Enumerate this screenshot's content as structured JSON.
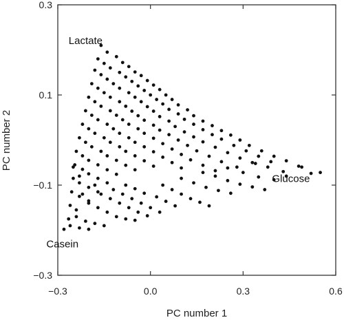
{
  "chart_data": {
    "type": "scatter",
    "title": "",
    "xlabel": "PC number 1",
    "ylabel": "PC number 2",
    "xlim": [
      -0.3,
      0.6
    ],
    "ylim": [
      -0.3,
      0.3
    ],
    "xticks": [
      -0.3,
      0.0,
      0.3,
      0.6
    ],
    "xtick_labels": [
      "−0.3",
      "0.0",
      "0.3",
      "0.6"
    ],
    "yticks": [
      -0.3,
      -0.1,
      0.1,
      0.3
    ],
    "ytick_labels": [
      "−0.3",
      "−0.1",
      "0.1",
      "0.3"
    ],
    "grid": false,
    "annotations": [
      {
        "text": "Lactate",
        "x": -0.21,
        "y": 0.213
      },
      {
        "text": "Glucose",
        "x": 0.455,
        "y": -0.093
      },
      {
        "text": "Casein",
        "x": -0.285,
        "y": -0.238
      }
    ],
    "point_color": "#111111",
    "series": [
      {
        "points": [
          [
            -0.16,
            0.21
          ],
          [
            -0.14,
            0.195
          ],
          [
            -0.11,
            0.185
          ],
          [
            -0.09,
            0.172
          ],
          [
            -0.07,
            0.163
          ],
          [
            -0.05,
            0.151
          ],
          [
            -0.03,
            0.143
          ],
          [
            -0.01,
            0.132
          ],
          [
            0.01,
            0.122
          ],
          [
            0.03,
            0.112
          ],
          [
            0.05,
            0.1
          ],
          [
            0.07,
            0.09
          ],
          [
            0.09,
            0.078
          ],
          [
            0.12,
            0.067
          ],
          [
            0.14,
            0.054
          ],
          [
            0.17,
            0.042
          ],
          [
            0.2,
            0.032
          ],
          [
            0.23,
            0.021
          ],
          [
            0.26,
            0.011
          ],
          [
            0.29,
            0.0
          ],
          [
            0.32,
            -0.012
          ],
          [
            0.36,
            -0.024
          ],
          [
            0.4,
            -0.036
          ],
          [
            0.44,
            -0.046
          ],
          [
            0.48,
            -0.058
          ],
          [
            0.55,
            -0.072
          ],
          [
            -0.17,
            0.18
          ],
          [
            -0.15,
            0.17
          ],
          [
            -0.13,
            0.16
          ],
          [
            -0.1,
            0.15
          ],
          [
            -0.08,
            0.14
          ],
          [
            -0.06,
            0.13
          ],
          [
            -0.04,
            0.12
          ],
          [
            -0.02,
            0.11
          ],
          [
            0.0,
            0.1
          ],
          [
            0.02,
            0.09
          ],
          [
            0.04,
            0.08
          ],
          [
            0.06,
            0.068
          ],
          [
            0.09,
            0.058
          ],
          [
            0.11,
            0.046
          ],
          [
            0.14,
            0.035
          ],
          [
            0.17,
            0.023
          ],
          [
            0.2,
            0.012
          ],
          [
            0.23,
            0.002
          ],
          [
            0.27,
            -0.012
          ],
          [
            0.31,
            -0.024
          ],
          [
            0.35,
            -0.036
          ],
          [
            0.39,
            -0.048
          ],
          [
            -0.18,
            0.155
          ],
          [
            -0.16,
            0.145
          ],
          [
            -0.14,
            0.135
          ],
          [
            -0.12,
            0.125
          ],
          [
            -0.1,
            0.115
          ],
          [
            -0.07,
            0.105
          ],
          [
            -0.05,
            0.095
          ],
          [
            -0.03,
            0.085
          ],
          [
            -0.01,
            0.074
          ],
          [
            0.01,
            0.064
          ],
          [
            0.03,
            0.052
          ],
          [
            0.06,
            0.042
          ],
          [
            0.08,
            0.03
          ],
          [
            0.11,
            0.018
          ],
          [
            0.14,
            0.007
          ],
          [
            0.17,
            -0.004
          ],
          [
            0.21,
            -0.016
          ],
          [
            0.25,
            -0.028
          ],
          [
            0.29,
            -0.04
          ],
          [
            0.34,
            -0.052
          ],
          [
            -0.19,
            0.125
          ],
          [
            -0.17,
            0.115
          ],
          [
            -0.15,
            0.105
          ],
          [
            -0.13,
            0.095
          ],
          [
            -0.1,
            0.085
          ],
          [
            -0.08,
            0.075
          ],
          [
            -0.06,
            0.064
          ],
          [
            -0.04,
            0.054
          ],
          [
            -0.02,
            0.044
          ],
          [
            0.01,
            0.033
          ],
          [
            0.03,
            0.022
          ],
          [
            0.06,
            0.012
          ],
          [
            0.09,
            0.0
          ],
          [
            0.12,
            -0.012
          ],
          [
            0.15,
            -0.024
          ],
          [
            0.19,
            -0.036
          ],
          [
            0.23,
            -0.048
          ],
          [
            0.28,
            -0.06
          ],
          [
            -0.2,
            0.095
          ],
          [
            -0.18,
            0.085
          ],
          [
            -0.16,
            0.075
          ],
          [
            -0.13,
            0.065
          ],
          [
            -0.11,
            0.055
          ],
          [
            -0.09,
            0.045
          ],
          [
            -0.07,
            0.035
          ],
          [
            -0.04,
            0.025
          ],
          [
            -0.02,
            0.015
          ],
          [
            0.01,
            0.004
          ],
          [
            0.04,
            -0.008
          ],
          [
            0.07,
            -0.02
          ],
          [
            0.1,
            -0.032
          ],
          [
            0.13,
            -0.044
          ],
          [
            0.17,
            -0.056
          ],
          [
            0.21,
            -0.068
          ],
          [
            -0.21,
            0.065
          ],
          [
            -0.19,
            0.055
          ],
          [
            -0.17,
            0.045
          ],
          [
            -0.14,
            0.035
          ],
          [
            -0.12,
            0.025
          ],
          [
            -0.1,
            0.015
          ],
          [
            -0.07,
            0.005
          ],
          [
            -0.05,
            -0.005
          ],
          [
            -0.02,
            -0.015
          ],
          [
            0.01,
            -0.026
          ],
          [
            0.04,
            -0.038
          ],
          [
            0.07,
            -0.05
          ],
          [
            0.1,
            -0.062
          ],
          [
            -0.22,
            0.035
          ],
          [
            -0.2,
            0.025
          ],
          [
            -0.18,
            0.015
          ],
          [
            -0.15,
            0.005
          ],
          [
            -0.13,
            -0.005
          ],
          [
            -0.1,
            -0.015
          ],
          [
            -0.08,
            -0.025
          ],
          [
            -0.05,
            -0.035
          ],
          [
            -0.02,
            -0.046
          ],
          [
            0.01,
            -0.058
          ],
          [
            -0.23,
            0.005
          ],
          [
            -0.21,
            -0.005
          ],
          [
            -0.19,
            -0.015
          ],
          [
            -0.16,
            -0.025
          ],
          [
            -0.14,
            -0.035
          ],
          [
            -0.11,
            -0.045
          ],
          [
            -0.08,
            -0.056
          ],
          [
            -0.05,
            -0.066
          ],
          [
            -0.24,
            -0.025
          ],
          [
            -0.22,
            -0.035
          ],
          [
            -0.2,
            -0.045
          ],
          [
            -0.17,
            -0.055
          ],
          [
            -0.14,
            -0.066
          ],
          [
            -0.11,
            -0.076
          ],
          [
            -0.245,
            -0.055
          ],
          [
            -0.22,
            -0.065
          ],
          [
            -0.2,
            -0.075
          ],
          [
            -0.17,
            -0.085
          ],
          [
            -0.14,
            -0.095
          ],
          [
            -0.25,
            -0.085
          ],
          [
            -0.23,
            -0.095
          ],
          [
            -0.2,
            -0.105
          ],
          [
            -0.17,
            -0.115
          ],
          [
            -0.255,
            -0.115
          ],
          [
            -0.23,
            -0.125
          ],
          [
            -0.2,
            -0.135
          ],
          [
            -0.26,
            -0.145
          ],
          [
            -0.24,
            -0.155
          ],
          [
            -0.265,
            -0.175
          ],
          [
            -0.28,
            -0.198
          ],
          [
            -0.25,
            -0.06
          ],
          [
            -0.23,
            -0.08
          ],
          [
            -0.18,
            -0.1
          ],
          [
            -0.16,
            -0.12
          ],
          [
            -0.13,
            -0.13
          ],
          [
            -0.1,
            -0.14
          ],
          [
            -0.07,
            -0.15
          ],
          [
            -0.04,
            -0.16
          ],
          [
            -0.01,
            -0.168
          ],
          [
            -0.22,
            -0.12
          ],
          [
            -0.2,
            -0.14
          ],
          [
            -0.17,
            -0.15
          ],
          [
            -0.14,
            -0.16
          ],
          [
            -0.11,
            -0.17
          ],
          [
            -0.08,
            -0.175
          ],
          [
            -0.05,
            -0.178
          ],
          [
            -0.24,
            -0.17
          ],
          [
            -0.21,
            -0.18
          ],
          [
            -0.18,
            -0.185
          ],
          [
            -0.15,
            -0.19
          ],
          [
            -0.26,
            -0.19
          ],
          [
            -0.23,
            -0.195
          ],
          [
            -0.2,
            -0.198
          ],
          [
            -0.12,
            -0.11
          ],
          [
            -0.09,
            -0.12
          ],
          [
            -0.06,
            -0.13
          ],
          [
            -0.03,
            -0.14
          ],
          [
            0.0,
            -0.15
          ],
          [
            0.03,
            -0.16
          ],
          [
            -0.08,
            -0.1
          ],
          [
            -0.05,
            -0.108
          ],
          [
            -0.02,
            -0.118
          ],
          [
            0.02,
            -0.126
          ],
          [
            0.05,
            -0.136
          ],
          [
            0.08,
            -0.146
          ],
          [
            0.04,
            -0.1
          ],
          [
            0.07,
            -0.11
          ],
          [
            0.1,
            -0.12
          ],
          [
            0.13,
            -0.13
          ],
          [
            0.16,
            -0.138
          ],
          [
            0.19,
            -0.146
          ],
          [
            0.1,
            -0.085
          ],
          [
            0.14,
            -0.095
          ],
          [
            0.18,
            -0.105
          ],
          [
            0.22,
            -0.112
          ],
          [
            0.26,
            -0.118
          ],
          [
            0.17,
            -0.072
          ],
          [
            0.21,
            -0.08
          ],
          [
            0.25,
            -0.09
          ],
          [
            0.29,
            -0.098
          ],
          [
            0.33,
            -0.104
          ],
          [
            0.37,
            -0.11
          ],
          [
            0.25,
            -0.062
          ],
          [
            0.3,
            -0.072
          ],
          [
            0.35,
            -0.082
          ],
          [
            0.4,
            -0.088
          ],
          [
            0.44,
            -0.08
          ],
          [
            0.33,
            -0.05
          ],
          [
            0.38,
            -0.06
          ],
          [
            0.43,
            -0.07
          ],
          [
            0.49,
            -0.06
          ],
          [
            0.52,
            -0.074
          ]
        ]
      }
    ]
  }
}
